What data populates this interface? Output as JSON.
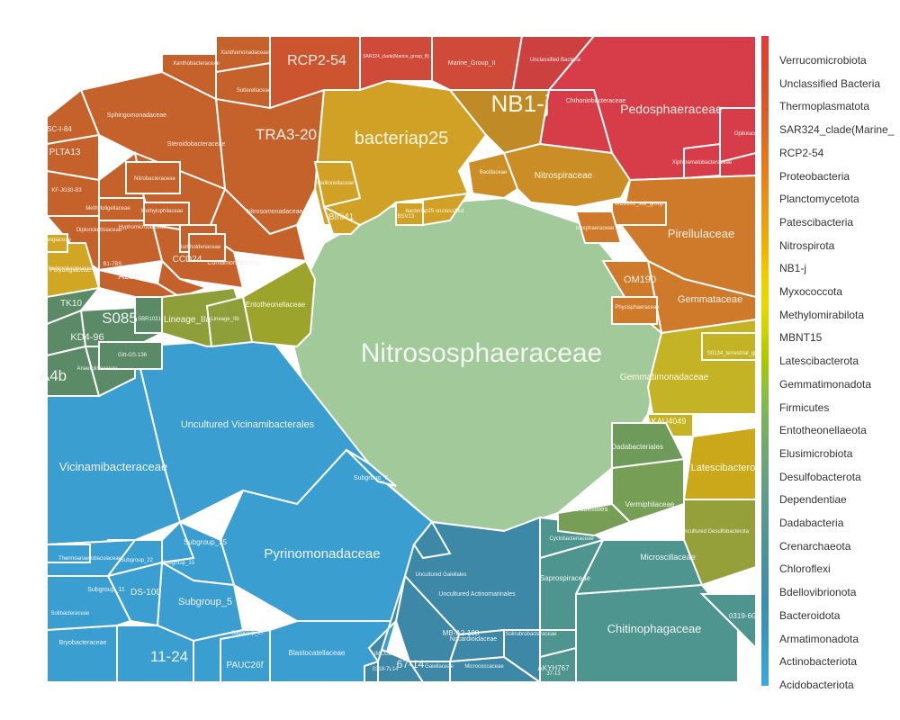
{
  "chart_data": {
    "type": "treemap",
    "layout": "voronoi",
    "title": "",
    "legend": {
      "placement": "right",
      "kind": "color-scale",
      "phyla": [
        "Verrucomicrobiota",
        "Unclassified Bacteria",
        "Thermoplasmatota",
        "SAR324_clade(Marine_",
        "RCP2-54",
        "Proteobacteria",
        "Planctomycetota",
        "Patescibacteria",
        "Nitrospirota",
        "NB1-j",
        "Myxococcota",
        "Methylomirabilota",
        "MBNT15",
        "Latescibacterota",
        "Gemmatimonadota",
        "Firmicutes",
        "Entotheonellaeota",
        "Elusimicrobiota",
        "Desulfobacterota",
        "Dependentiae",
        "Dadabacteria",
        "Crenarchaeota",
        "Chloroflexi",
        "Bdellovibrionota",
        "Bacteroidota",
        "Armatimonadota",
        "Actinobacteriota",
        "Acidobacteriota"
      ],
      "colors": [
        "#e33a3f",
        "#d9472e",
        "#d5522a",
        "#d85f2a",
        "#de6f24",
        "#e37f20",
        "#e89019",
        "#eba20f",
        "#eeb800",
        "#eecf00",
        "#e6da00",
        "#c9d200",
        "#a8c800",
        "#8ec03a",
        "#7fb35a",
        "#73aa6e",
        "#6aa37e",
        "#5f9c8a",
        "#56978f",
        "#4c9498",
        "#4590a2",
        "#3d8eab",
        "#3a95b8",
        "#3ba0cb",
        "#3aa9dd"
      ]
    },
    "regions": [
      {
        "phylum": "Crenarchaeota",
        "color": "#a1c99a",
        "cells": [
          {
            "name": "Nitrososphaeraceae"
          }
        ]
      },
      {
        "phylum": "Acidobacteriota",
        "color": "#3b9ed1",
        "cells": [
          {
            "name": "Uncultured Vicinamibacterales"
          },
          {
            "name": "Vicinamibacteraceae"
          },
          {
            "name": "Pyrinomonadaceae"
          },
          {
            "name": "Subgroup_25"
          },
          {
            "name": "Subgroup_5"
          },
          {
            "name": "DS-100"
          },
          {
            "name": "11-24"
          },
          {
            "name": "PAUC26f"
          },
          {
            "name": "Blastocatellaceae"
          },
          {
            "name": "Bryobacteraceae"
          },
          {
            "name": "Subgroup_11"
          },
          {
            "name": "Subgroup_22"
          },
          {
            "name": "Subgroup_15"
          },
          {
            "name": "Subgroup_17"
          },
          {
            "name": "Subgroup_7"
          },
          {
            "name": "Solibacteraceae"
          },
          {
            "name": "Thermoanaerobaculaceae"
          },
          {
            "name": "Acidobacteriaceae"
          }
        ]
      },
      {
        "phylum": "Actinobacteriota",
        "color": "#3c88a6",
        "cells": [
          {
            "name": "Uncultured Actinomarinales"
          },
          {
            "name": "MB-A2-108"
          },
          {
            "name": "67-14"
          },
          {
            "name": "Gaiellaceae"
          },
          {
            "name": "Micrococcaceae"
          },
          {
            "name": "Nocardioidaceae"
          },
          {
            "name": "Uncultured Gaiellales"
          },
          {
            "name": "IMCC26256"
          },
          {
            "name": "0319-7L14"
          },
          {
            "name": "Solirubrobacteraceae"
          },
          {
            "name": "Streptomycetaceae"
          },
          {
            "name": "Geodermatophilaceae"
          }
        ]
      },
      {
        "phylum": "Bacteroidota",
        "color": "#4e958f",
        "cells": [
          {
            "name": "Chitinophagaceae"
          },
          {
            "name": "Microscillaceae"
          },
          {
            "name": "Saprospiraceae"
          },
          {
            "name": "AKYH767"
          },
          {
            "name": "37-13"
          },
          {
            "name": "0319-6G20"
          },
          {
            "name": "Cyclobacteriaceae"
          },
          {
            "name": "BIrii41"
          }
        ]
      },
      {
        "phylum": "Proteobacteria",
        "color": "#c5612b",
        "cells": [
          {
            "name": "TRA3-20"
          },
          {
            "name": "Sphingomonadaceae"
          },
          {
            "name": "Steroidobacteraceae"
          },
          {
            "name": "Nitrosomonadaceae"
          },
          {
            "name": "Comamonadaceae"
          },
          {
            "name": "CCD24"
          },
          {
            "name": "A21b"
          },
          {
            "name": "SC-I-84"
          },
          {
            "name": "PLTA13"
          },
          {
            "name": "KF-JG30-B3"
          },
          {
            "name": "Diplorickettsiaceae"
          },
          {
            "name": "B1-7BS"
          },
          {
            "name": "Rhodanobacteraceae"
          },
          {
            "name": "Sutterellaceae"
          },
          {
            "name": "Xanthobacteraceae"
          },
          {
            "name": "Xanthomonadaceae"
          },
          {
            "name": "Nitrobacteraceae"
          },
          {
            "name": "Methyloligellaceae"
          },
          {
            "name": "Methylophilaceae"
          },
          {
            "name": "Hyphomicrobiaceae"
          },
          {
            "name": "Burkholderiaceae"
          },
          {
            "name": "Rhizobiaceae"
          }
        ]
      },
      {
        "phylum": "RCP2-54",
        "color": "#cc5530",
        "cells": [
          {
            "name": "RCP2-54"
          }
        ]
      },
      {
        "phylum": "SAR324_clade(Marine_group_B)",
        "color": "#d04a3a",
        "cells": [
          {
            "name": "SAR324_clade(Marine_group_B)"
          },
          {
            "name": "Marine_Group_II"
          }
        ]
      },
      {
        "phylum": "Unclassified Bacteria",
        "color": "#cc4040",
        "cells": [
          {
            "name": "Unclassified Bacteria"
          }
        ]
      },
      {
        "phylum": "Verrucomicrobiota",
        "color": "#d63d48",
        "cells": [
          {
            "name": "Pedosphaeraceae"
          },
          {
            "name": "Chthoniobacteraceae"
          },
          {
            "name": "Opitutaceae"
          },
          {
            "name": "Xiphinematobacteraceae"
          }
        ]
      },
      {
        "phylum": "Patescibacteria",
        "color": "#d0a124",
        "cells": [
          {
            "name": "bacteriap25"
          },
          {
            "name": "BIrii41"
          },
          {
            "name": "Gallionellaceae"
          },
          {
            "name": "BSV13"
          },
          {
            "name": "bacteriap25 unclassified"
          }
        ]
      },
      {
        "phylum": "NB1-j",
        "color": "#c08a26",
        "cells": [
          {
            "name": "NB1-j"
          }
        ]
      },
      {
        "phylum": "Nitrospirota",
        "color": "#cb8e26",
        "cells": [
          {
            "name": "Nitrospiraceae"
          },
          {
            "name": "Bacillaceae"
          }
        ]
      },
      {
        "phylum": "Planctomycetota",
        "color": "#cf7a2a",
        "cells": [
          {
            "name": "Pirellulaceae"
          },
          {
            "name": "Gemmataceae"
          },
          {
            "name": "OM190"
          },
          {
            "name": "Phycisphaeraceae"
          },
          {
            "name": "WD2101_soil_group"
          },
          {
            "name": "Isosphaeraceae"
          },
          {
            "name": "Planctomycetales"
          }
        ]
      },
      {
        "phylum": "Gemmatimonadota",
        "color": "#c4b324",
        "cells": [
          {
            "name": "Gemmatimonadaceae"
          },
          {
            "name": "AKAU4049"
          },
          {
            "name": "S0134_terrestrial_group"
          },
          {
            "name": "Longimicrobiaceae"
          }
        ]
      },
      {
        "phylum": "Latescibacterota",
        "color": "#cba71a",
        "cells": [
          {
            "name": "Latescibacterota"
          }
        ]
      },
      {
        "phylum": "Desulfobacterota",
        "color": "#96a03a",
        "cells": [
          {
            "name": "Uncultured Desulfobacterota"
          }
        ]
      },
      {
        "phylum": "Dependentiae",
        "color": "#769e55",
        "cells": [
          {
            "name": "Vermiphilaceae"
          },
          {
            "name": "Babeliales"
          }
        ]
      },
      {
        "phylum": "Dadabacteria",
        "color": "#6e9a5a",
        "cells": [
          {
            "name": "Dadabacteriales"
          }
        ]
      },
      {
        "phylum": "Entotheonellaeota",
        "color": "#9ca42c",
        "cells": [
          {
            "name": "Entotheonellaceae"
          }
        ]
      },
      {
        "phylum": "Elusimicrobiota",
        "color": "#8e9f3a",
        "cells": [
          {
            "name": "Lineage_IIa"
          },
          {
            "name": "Lineage_IIb"
          }
        ]
      },
      {
        "phylum": "Chloroflexi",
        "color": "#5a8a66",
        "cells": [
          {
            "name": "S085"
          },
          {
            "name": "KD4-96"
          },
          {
            "name": "TK10"
          },
          {
            "name": "A4b"
          },
          {
            "name": "Anaerolineaceae"
          },
          {
            "name": "SBR1031"
          },
          {
            "name": "Gitt-GS-136"
          },
          {
            "name": "JG30-KF-CM45"
          }
        ]
      },
      {
        "phylum": "Myxococcota",
        "color": "#d0a623",
        "cells": [
          {
            "name": "Polyangiaceae"
          },
          {
            "name": "Haliangiaceae"
          }
        ]
      }
    ]
  }
}
